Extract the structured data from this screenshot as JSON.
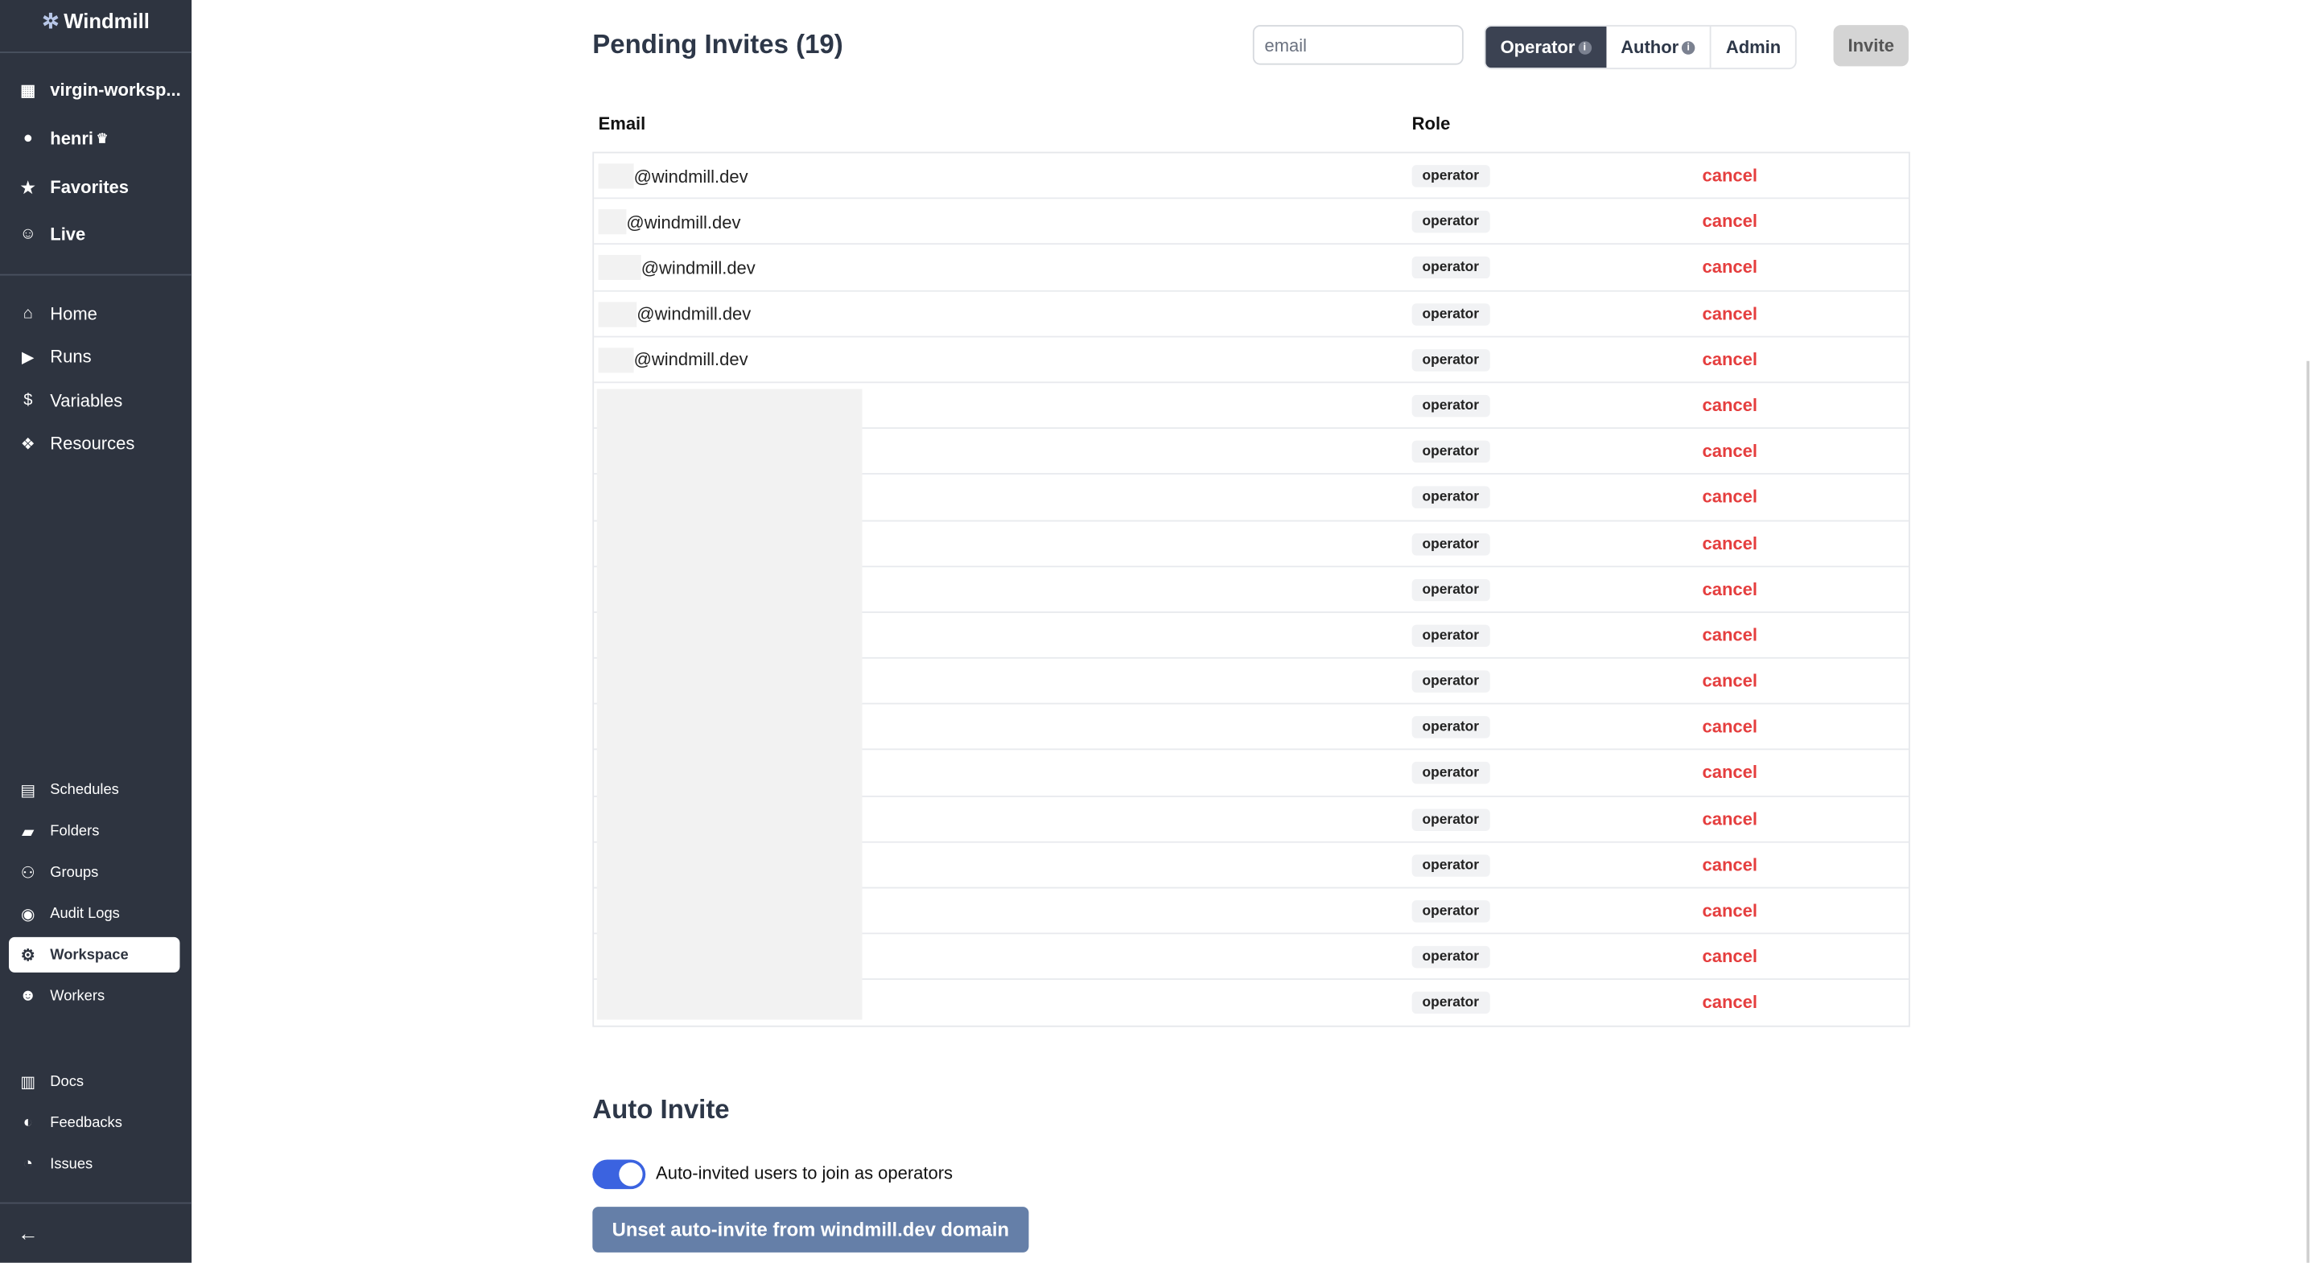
{
  "sidebar": {
    "brand": "Windmill",
    "top": [
      {
        "label": "virgin-worksp...",
        "icon": "building-icon"
      },
      {
        "label": "henri",
        "icon": "user-icon",
        "badge": "♛"
      },
      {
        "label": "Favorites",
        "icon": "star-icon"
      },
      {
        "label": "Live",
        "icon": "users-icon"
      }
    ],
    "main": [
      {
        "label": "Home",
        "icon": "home-icon"
      },
      {
        "label": "Runs",
        "icon": "play-icon"
      },
      {
        "label": "Variables",
        "icon": "dollar-icon"
      },
      {
        "label": "Resources",
        "icon": "boxes-icon"
      }
    ],
    "secondary": [
      {
        "label": "Schedules",
        "icon": "calendar-icon"
      },
      {
        "label": "Folders",
        "icon": "folder-icon"
      },
      {
        "label": "Groups",
        "icon": "group-icon"
      },
      {
        "label": "Audit Logs",
        "icon": "eye-icon"
      },
      {
        "label": "Workspace",
        "icon": "gear-icon",
        "active": true
      },
      {
        "label": "Workers",
        "icon": "robot-icon"
      }
    ],
    "help": [
      {
        "label": "Docs",
        "icon": "book-icon"
      },
      {
        "label": "Feedbacks",
        "icon": "discord-icon"
      },
      {
        "label": "Issues",
        "icon": "github-icon"
      }
    ],
    "collapse_icon": "arrow-left-icon"
  },
  "invites": {
    "title": "Pending Invites (19)",
    "email_placeholder": "email",
    "roles": [
      "Operator",
      "Author",
      "Admin"
    ],
    "selected_role": "Operator",
    "invite_label": "Invite",
    "headers": {
      "email": "Email",
      "role": "Role"
    },
    "rows": [
      {
        "email": "@windmill.dev",
        "role": "operator",
        "action": "cancel"
      },
      {
        "email": "@windmill.dev",
        "role": "operator",
        "action": "cancel"
      },
      {
        "email": "@windmill.dev",
        "role": "operator",
        "action": "cancel"
      },
      {
        "email": "@windmill.dev",
        "role": "operator",
        "action": "cancel"
      },
      {
        "email": "@windmill.dev",
        "role": "operator",
        "action": "cancel"
      },
      {
        "email": "",
        "role": "operator",
        "action": "cancel"
      },
      {
        "email": "",
        "role": "operator",
        "action": "cancel"
      },
      {
        "email": "",
        "role": "operator",
        "action": "cancel"
      },
      {
        "email": "",
        "role": "operator",
        "action": "cancel"
      },
      {
        "email": "",
        "role": "operator",
        "action": "cancel"
      },
      {
        "email": "",
        "role": "operator",
        "action": "cancel"
      },
      {
        "email": "",
        "role": "operator",
        "action": "cancel"
      },
      {
        "email": "",
        "role": "operator",
        "action": "cancel"
      },
      {
        "email": "",
        "role": "operator",
        "action": "cancel"
      },
      {
        "email": "",
        "role": "operator",
        "action": "cancel"
      },
      {
        "email": "",
        "role": "operator",
        "action": "cancel"
      },
      {
        "email": "",
        "role": "operator",
        "action": "cancel"
      },
      {
        "email": "",
        "role": "operator",
        "action": "cancel"
      },
      {
        "email": "",
        "role": "operator",
        "action": "cancel"
      }
    ]
  },
  "auto_invite": {
    "title": "Auto Invite",
    "toggle_label": "Auto-invited users to join as operators",
    "toggle_on": true,
    "unset_label": "Unset auto-invite from windmill.dev domain"
  },
  "colors": {
    "sidebar": "#2e3440",
    "accent": "#3b63e0",
    "cancel": "#e53e3e",
    "unset_button": "#657fa8"
  }
}
